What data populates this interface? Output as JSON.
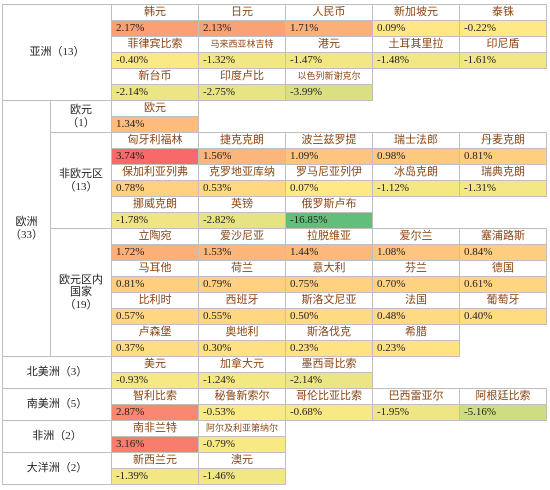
{
  "color_scale": [
    "#63be7b",
    "#ffeb84",
    "#f8696b"
  ],
  "groups": [
    {
      "label": [
        "亚洲（13）"
      ],
      "subgroups": [
        {
          "currencies": [
            {
              "name": "韩元",
              "value": 2.17,
              "value_label": "2.17%"
            },
            {
              "name": "日元",
              "value": 2.13,
              "value_label": "2.13%"
            },
            {
              "name": "人民币",
              "value": 1.71,
              "value_label": "1.71%"
            },
            {
              "name": "新加坡元",
              "value": 0.09,
              "value_label": "0.09%"
            },
            {
              "name": "泰铢",
              "value": -0.22,
              "value_label": "-0.22%"
            },
            {
              "name": "菲律宾比索",
              "value": -0.4,
              "value_label": "-0.40%"
            },
            {
              "name": "马来西亚林吉特",
              "value": -1.32,
              "value_label": "-1.32%"
            },
            {
              "name": "港元",
              "value": -1.47,
              "value_label": "-1.47%"
            },
            {
              "name": "土耳其里拉",
              "value": -1.48,
              "value_label": "-1.48%"
            },
            {
              "name": "印尼盾",
              "value": -1.61,
              "value_label": "-1.61%"
            },
            {
              "name": "新台币",
              "value": -2.14,
              "value_label": "-2.14%"
            },
            {
              "name": "印度卢比",
              "value": -2.75,
              "value_label": "-2.75%"
            },
            {
              "name": "以色列新谢克尔",
              "value": -3.99,
              "value_label": "-3.99%"
            }
          ]
        }
      ]
    },
    {
      "label": [
        "欧洲",
        "（33）"
      ],
      "subgroups": [
        {
          "label": [
            "欧元",
            "（1）"
          ],
          "currencies": [
            {
              "name": "欧元",
              "value": 1.34,
              "value_label": "1.34%"
            }
          ]
        },
        {
          "label": [
            "非欧元区",
            "（13）"
          ],
          "currencies": [
            {
              "name": "匈牙利福林",
              "value": 3.74,
              "value_label": "3.74%"
            },
            {
              "name": "捷克克朗",
              "value": 1.56,
              "value_label": "1.56%"
            },
            {
              "name": "波兰兹罗提",
              "value": 1.09,
              "value_label": "1.09%"
            },
            {
              "name": "瑞士法郎",
              "value": 0.98,
              "value_label": "0.98%"
            },
            {
              "name": "丹麦克朗",
              "value": 0.81,
              "value_label": "0.81%"
            },
            {
              "name": "保加利亚列弗",
              "value": 0.78,
              "value_label": "0.78%"
            },
            {
              "name": "克罗地亚库纳",
              "value": 0.53,
              "value_label": "0.53%"
            },
            {
              "name": "罗马尼亚列伊",
              "value": 0.07,
              "value_label": "0.07%"
            },
            {
              "name": "冰岛克朗",
              "value": -1.12,
              "value_label": "-1.12%"
            },
            {
              "name": "瑞典克朗",
              "value": -1.31,
              "value_label": "-1.31%"
            },
            {
              "name": "挪威克朗",
              "value": -1.78,
              "value_label": "-1.78%"
            },
            {
              "name": "英镑",
              "value": -2.82,
              "value_label": "-2.82%"
            },
            {
              "name": "俄罗斯卢布",
              "value": -16.85,
              "value_label": "-16.85%"
            }
          ]
        },
        {
          "label": [
            "欧元区内",
            "国家",
            "（19）"
          ],
          "currencies": [
            {
              "name": "立陶宛",
              "value": 1.72,
              "value_label": "1.72%"
            },
            {
              "name": "爱沙尼亚",
              "value": 1.53,
              "value_label": "1.53%"
            },
            {
              "name": "拉脱维亚",
              "value": 1.44,
              "value_label": "1.44%"
            },
            {
              "name": "爱尔兰",
              "value": 1.08,
              "value_label": "1.08%"
            },
            {
              "name": "塞浦路斯",
              "value": 0.84,
              "value_label": "0.84%"
            },
            {
              "name": "马耳他",
              "value": 0.81,
              "value_label": "0.81%"
            },
            {
              "name": "荷兰",
              "value": 0.79,
              "value_label": "0.79%"
            },
            {
              "name": "意大利",
              "value": 0.75,
              "value_label": "0.75%"
            },
            {
              "name": "芬兰",
              "value": 0.7,
              "value_label": "0.70%"
            },
            {
              "name": "德国",
              "value": 0.61,
              "value_label": "0.61%"
            },
            {
              "name": "比利时",
              "value": 0.57,
              "value_label": "0.57%"
            },
            {
              "name": "西班牙",
              "value": 0.55,
              "value_label": "0.55%"
            },
            {
              "name": "斯洛文尼亚",
              "value": 0.5,
              "value_label": "0.50%"
            },
            {
              "name": "法国",
              "value": 0.48,
              "value_label": "0.48%"
            },
            {
              "name": "葡萄牙",
              "value": 0.4,
              "value_label": "0.40%"
            },
            {
              "name": "卢森堡",
              "value": 0.37,
              "value_label": "0.37%"
            },
            {
              "name": "奥地利",
              "value": 0.3,
              "value_label": "0.30%"
            },
            {
              "name": "斯洛伐克",
              "value": 0.23,
              "value_label": "0.23%"
            },
            {
              "name": "希腊",
              "value": 0.23,
              "value_label": "0.23%"
            }
          ]
        }
      ]
    },
    {
      "label": [
        "北美洲（3）"
      ],
      "subgroups": [
        {
          "currencies": [
            {
              "name": "美元",
              "value": -0.93,
              "value_label": "-0.93%"
            },
            {
              "name": "加拿大元",
              "value": -1.24,
              "value_label": "-1.24%"
            },
            {
              "name": "墨西哥比索",
              "value": -2.14,
              "value_label": "-2.14%"
            }
          ]
        }
      ]
    },
    {
      "label": [
        "南美洲（5）"
      ],
      "subgroups": [
        {
          "currencies": [
            {
              "name": "智利比索",
              "value": 2.87,
              "value_label": "2.87%"
            },
            {
              "name": "秘鲁新索尔",
              "value": -0.53,
              "value_label": "-0.53%"
            },
            {
              "name": "哥伦比亚比索",
              "value": -0.68,
              "value_label": "-0.68%"
            },
            {
              "name": "巴西雷亚尔",
              "value": -1.95,
              "value_label": "-1.95%"
            },
            {
              "name": "阿根廷比索",
              "value": -5.16,
              "value_label": "-5.16%"
            }
          ]
        }
      ]
    },
    {
      "label": [
        "非洲（2）"
      ],
      "subgroups": [
        {
          "currencies": [
            {
              "name": "南非兰特",
              "value": 3.16,
              "value_label": "3.16%"
            },
            {
              "name": "阿尔及利亚第纳尔",
              "value": -0.79,
              "value_label": "-0.79%"
            }
          ]
        }
      ]
    },
    {
      "label": [
        "大洋洲（2）"
      ],
      "subgroups": [
        {
          "currencies": [
            {
              "name": "新西兰元",
              "value": -1.39,
              "value_label": "-1.39%"
            },
            {
              "name": "澳元",
              "value": -1.46,
              "value_label": "-1.46%"
            }
          ]
        }
      ]
    }
  ]
}
